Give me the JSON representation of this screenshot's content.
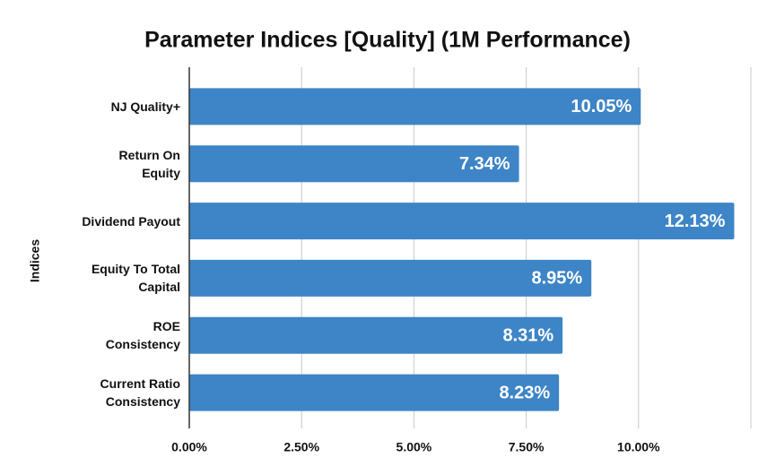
{
  "chart_data": {
    "type": "bar",
    "orientation": "horizontal",
    "title": "Parameter Indices [Quality] (1M Performance)",
    "y_label": "Indices",
    "categories": [
      "NJ Quality+",
      "Return On\nEquity",
      "Dividend Payout",
      "Equity To Total\nCapital",
      "ROE\nConsistency",
      "Current Ratio\nConsistency"
    ],
    "values": [
      10.05,
      7.34,
      12.13,
      8.95,
      8.31,
      8.23
    ],
    "value_labels": [
      "10.05%",
      "7.34%",
      "12.13%",
      "8.95%",
      "8.31%",
      "8.23%"
    ],
    "color": "#3d85c6",
    "xlim": [
      0,
      12.5
    ],
    "xticks": [
      {
        "value": 0,
        "label": "0.00%"
      },
      {
        "value": 2.5,
        "label": "2.50%"
      },
      {
        "value": 5,
        "label": "5.00%"
      },
      {
        "value": 7.5,
        "label": "7.50%"
      },
      {
        "value": 10,
        "label": "10.00%"
      }
    ],
    "grid": true
  }
}
